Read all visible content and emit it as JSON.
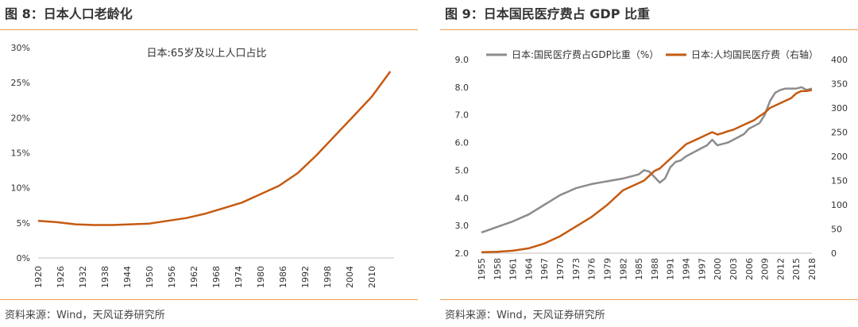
{
  "panels": {
    "left": {
      "title": "图 8：日本人口老龄化",
      "source": "资料来源：Wind，天风证券研究所"
    },
    "right": {
      "title": "图 9：日本国民医疗费占 GDP 比重",
      "source": "资料来源：Wind，天风证券研究所"
    }
  },
  "chart_data": [
    {
      "type": "line",
      "title": "",
      "legend": [
        "日本:65岁及以上人口占比"
      ],
      "x": [
        1920,
        1925,
        1930,
        1935,
        1940,
        1945,
        1950,
        1955,
        1960,
        1965,
        1970,
        1975,
        1980,
        1985,
        1990,
        1995,
        2000,
        2005,
        2010,
        2015
      ],
      "series": [
        {
          "name": "日本:65岁及以上人口占比",
          "color": "#c55a11",
          "values": [
            5.3,
            5.1,
            4.8,
            4.7,
            4.7,
            4.8,
            4.9,
            5.3,
            5.7,
            6.3,
            7.1,
            7.9,
            9.1,
            10.3,
            12.1,
            14.6,
            17.4,
            20.2,
            23.0,
            26.6
          ]
        }
      ],
      "xticks": [
        "1920",
        "1926",
        "1932",
        "1938",
        "1944",
        "1950",
        "1956",
        "1962",
        "1968",
        "1974",
        "1980",
        "1986",
        "1992",
        "1998",
        "2004",
        "2010"
      ],
      "yticks": [
        "0%",
        "5%",
        "10%",
        "15%",
        "20%",
        "25%",
        "30%"
      ],
      "ylim": [
        0,
        30
      ],
      "xlim": [
        1920,
        2016
      ],
      "grid": false
    },
    {
      "type": "line",
      "title": "",
      "legend_position": "top",
      "x": [
        1955,
        1958,
        1961,
        1964,
        1967,
        1970,
        1973,
        1976,
        1979,
        1982,
        1985,
        1986,
        1987,
        1988,
        1989,
        1990,
        1991,
        1992,
        1993,
        1994,
        1995,
        1996,
        1997,
        1998,
        1999,
        2000,
        2001,
        2002,
        2003,
        2004,
        2005,
        2006,
        2007,
        2008,
        2009,
        2010,
        2011,
        2012,
        2013,
        2014,
        2015,
        2016,
        2017,
        2018
      ],
      "series": [
        {
          "name": "日本:国民医疗费占GDP比重（%）",
          "axis": "left",
          "color": "#8c8c8c",
          "values": [
            2.75,
            2.95,
            3.15,
            3.4,
            3.75,
            4.1,
            4.35,
            4.5,
            4.6,
            4.7,
            4.85,
            5.0,
            4.95,
            4.75,
            4.55,
            4.7,
            5.1,
            5.3,
            5.35,
            5.5,
            5.6,
            5.7,
            5.8,
            5.9,
            6.1,
            5.9,
            5.95,
            6.0,
            6.1,
            6.2,
            6.3,
            6.5,
            6.6,
            6.7,
            7.0,
            7.5,
            7.8,
            7.9,
            7.95,
            7.95,
            7.95,
            8.0,
            7.9,
            7.95
          ]
        },
        {
          "name": "日本:人均国民医疗费（右轴）",
          "axis": "right",
          "color": "#c55a11",
          "values": [
            2,
            3,
            5,
            10,
            20,
            35,
            55,
            75,
            100,
            130,
            145,
            150,
            160,
            170,
            175,
            185,
            195,
            205,
            215,
            225,
            230,
            235,
            240,
            245,
            250,
            245,
            248,
            252,
            255,
            260,
            265,
            270,
            275,
            283,
            290,
            300,
            305,
            310,
            315,
            320,
            330,
            335,
            335,
            337
          ]
        }
      ],
      "xticks": [
        "1955",
        "1958",
        "1961",
        "1964",
        "1967",
        "1970",
        "1973",
        "1976",
        "1979",
        "1982",
        "1985",
        "1988",
        "1991",
        "1994",
        "1997",
        "2000",
        "2003",
        "2006",
        "2009",
        "2012",
        "2015",
        "2018"
      ],
      "yticks_left": [
        "2.0",
        "3.0",
        "4.0",
        "5.0",
        "6.0",
        "7.0",
        "8.0",
        "9.0"
      ],
      "yticks_right": [
        "0",
        "50",
        "100",
        "150",
        "200",
        "250",
        "300",
        "350",
        "400"
      ],
      "ylim_left": [
        2,
        9
      ],
      "ylim_right": [
        0,
        400
      ],
      "xlim": [
        1955,
        2018
      ],
      "grid": false
    }
  ]
}
